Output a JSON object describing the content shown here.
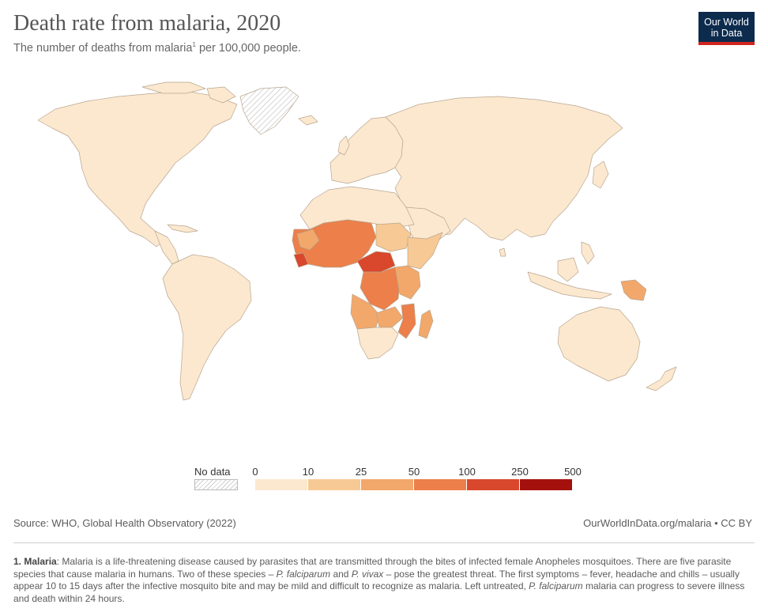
{
  "header": {
    "title": "Death rate from malaria, 2020",
    "subtitle_pre": "The number of deaths from malaria",
    "subtitle_sup": "1",
    "subtitle_post": " per 100,000 people."
  },
  "logo": {
    "line1": "Our World",
    "line2": "in Data",
    "bg": "#0c2b4d",
    "accent": "#ce261e"
  },
  "legend": {
    "no_data_label": "No data",
    "ticks": [
      "0",
      "10",
      "25",
      "50",
      "100",
      "250",
      "500"
    ],
    "bins": [
      {
        "from": "0",
        "to": "10",
        "color": "#fbe8cf"
      },
      {
        "from": "10",
        "to": "25",
        "color": "#f7c994"
      },
      {
        "from": "25",
        "to": "50",
        "color": "#f2a86a"
      },
      {
        "from": "50",
        "to": "100",
        "color": "#ec7f4a"
      },
      {
        "from": "100",
        "to": "250",
        "color": "#d9472c"
      },
      {
        "from": "250",
        "to": "500",
        "color": "#a4110d"
      }
    ]
  },
  "map": {
    "colors": {
      "ocean": "#ffffff",
      "land_low": "#fbe8cf",
      "border": "#b8a58e",
      "no_data": "#e9e9e9"
    },
    "regions": [
      {
        "id": "north-america",
        "bin": "0-10"
      },
      {
        "id": "south-america",
        "bin": "0-10"
      },
      {
        "id": "europe",
        "bin": "0-10"
      },
      {
        "id": "asia",
        "bin": "0-10"
      },
      {
        "id": "north-africa",
        "bin": "0-10"
      },
      {
        "id": "west-africa",
        "bin": "50-100"
      },
      {
        "id": "central-africa",
        "bin": "100-250"
      },
      {
        "id": "east-africa",
        "bin": "25-50"
      },
      {
        "id": "southern-africa",
        "bin": "0-10"
      },
      {
        "id": "mozambique",
        "bin": "50-100"
      },
      {
        "id": "madagascar",
        "bin": "25-50"
      },
      {
        "id": "papua-new-guinea",
        "bin": "25-50"
      },
      {
        "id": "australia",
        "bin": "0-10"
      },
      {
        "id": "greenland",
        "bin": "no data"
      }
    ]
  },
  "footer": {
    "source": "Source: WHO, Global Health Observatory (2022)",
    "credit": "OurWorldInData.org/malaria • CC BY",
    "note_label": "1. Malaria",
    "note_p1": ": Malaria is a life-threatening disease caused by parasites that are transmitted through the bites of infected female Anopheles mosquitoes. There are five parasite species that cause malaria in humans. Two of these species – ",
    "note_em1": "P. falciparum",
    "note_p2": " and ",
    "note_em2": "P. vivax",
    "note_p3": " – pose the greatest threat. The first symptoms – fever, headache and chills – usually appear 10 to 15 days after the infective mosquito bite and may be mild and difficult to recognize as malaria. Left untreated, ",
    "note_em3": "P. falciparum",
    "note_p4": " malaria can progress to severe illness and death within 24 hours."
  }
}
